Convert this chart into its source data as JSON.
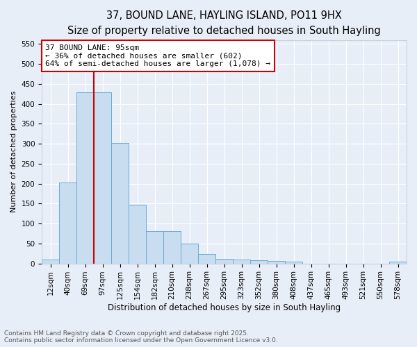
{
  "title": "37, BOUND LANE, HAYLING ISLAND, PO11 9HX",
  "subtitle": "Size of property relative to detached houses in South Hayling",
  "xlabel": "Distribution of detached houses by size in South Hayling",
  "ylabel": "Number of detached properties",
  "categories": [
    "12sqm",
    "40sqm",
    "69sqm",
    "97sqm",
    "125sqm",
    "154sqm",
    "182sqm",
    "210sqm",
    "238sqm",
    "267sqm",
    "295sqm",
    "323sqm",
    "352sqm",
    "380sqm",
    "408sqm",
    "437sqm",
    "465sqm",
    "493sqm",
    "521sqm",
    "550sqm",
    "578sqm"
  ],
  "values": [
    10,
    203,
    428,
    428,
    301,
    147,
    81,
    81,
    50,
    24,
    12,
    10,
    8,
    6,
    4,
    0,
    0,
    0,
    0,
    0,
    5
  ],
  "bar_color": "#c9ddf0",
  "bar_edge_color": "#6aaad4",
  "background_color": "#e8eef8",
  "grid_color": "#ffffff",
  "vline_color": "#cc0000",
  "vline_x_index": 3,
  "annotation_text": "37 BOUND LANE: 95sqm\n← 36% of detached houses are smaller (602)\n64% of semi-detached houses are larger (1,078) →",
  "annotation_box_edgecolor": "#cc0000",
  "ylim": [
    0,
    560
  ],
  "yticks": [
    0,
    50,
    100,
    150,
    200,
    250,
    300,
    350,
    400,
    450,
    500,
    550
  ],
  "footnote": "Contains HM Land Registry data © Crown copyright and database right 2025.\nContains public sector information licensed under the Open Government Licence v3.0.",
  "title_fontsize": 10.5,
  "subtitle_fontsize": 9.5,
  "xlabel_fontsize": 8.5,
  "ylabel_fontsize": 8,
  "tick_fontsize": 7.5,
  "annotation_fontsize": 8,
  "footnote_fontsize": 6.5
}
